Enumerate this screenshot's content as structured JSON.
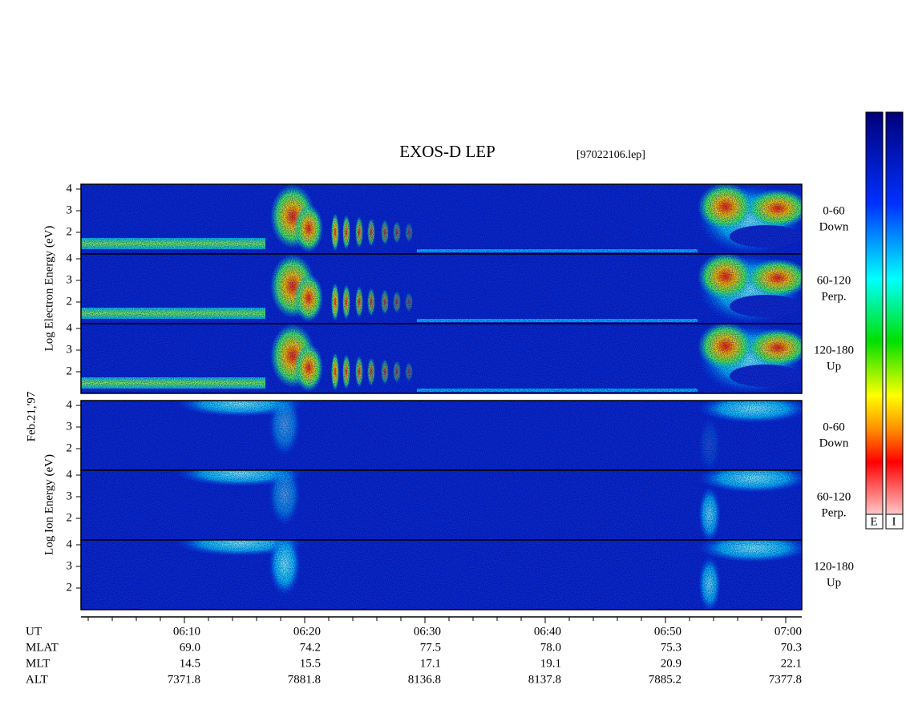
{
  "header": {
    "title": "EXOS-D LEP",
    "file": "[97022106.lep]"
  },
  "side_labels": {
    "electron": "Log   Electron   Energy (eV)",
    "date": "Feb.21,'97",
    "ion": "Log   Ion   Energy (eV)"
  },
  "panels": [
    {
      "ticks": [
        "4",
        "3",
        "2"
      ],
      "label": [
        "0-60",
        "Down"
      ]
    },
    {
      "ticks": [
        "4",
        "3",
        "2"
      ],
      "label": [
        "60-120",
        "Perp."
      ]
    },
    {
      "ticks": [
        "4",
        "3",
        "2"
      ],
      "label": [
        "120-180",
        "Up"
      ]
    },
    {
      "ticks": [
        "4",
        "3",
        "2"
      ],
      "label": [
        "0-60",
        "Down"
      ]
    },
    {
      "ticks": [
        "4",
        "3",
        "2"
      ],
      "label": [
        "60-120",
        "Perp."
      ]
    },
    {
      "ticks": [
        "4",
        "3",
        "2"
      ],
      "label": [
        "120-180",
        "Up"
      ]
    }
  ],
  "time_axis": {
    "rows": [
      {
        "name": "UT",
        "values": [
          "06:10",
          "06:20",
          "06:30",
          "06:40",
          "06:50",
          "07:00"
        ]
      },
      {
        "name": "MLAT",
        "values": [
          "69.0",
          "74.2",
          "77.5",
          "78.0",
          "75.3",
          "70.3"
        ]
      },
      {
        "name": "MLT",
        "values": [
          "14.5",
          "15.5",
          "17.1",
          "19.1",
          "20.9",
          "22.1"
        ]
      },
      {
        "name": "ALT",
        "values": [
          "7371.8",
          "7881.8",
          "8136.8",
          "8137.8",
          "7885.2",
          "7377.8"
        ]
      }
    ]
  },
  "colorbar": {
    "labels": [
      "E",
      "I"
    ]
  }
}
